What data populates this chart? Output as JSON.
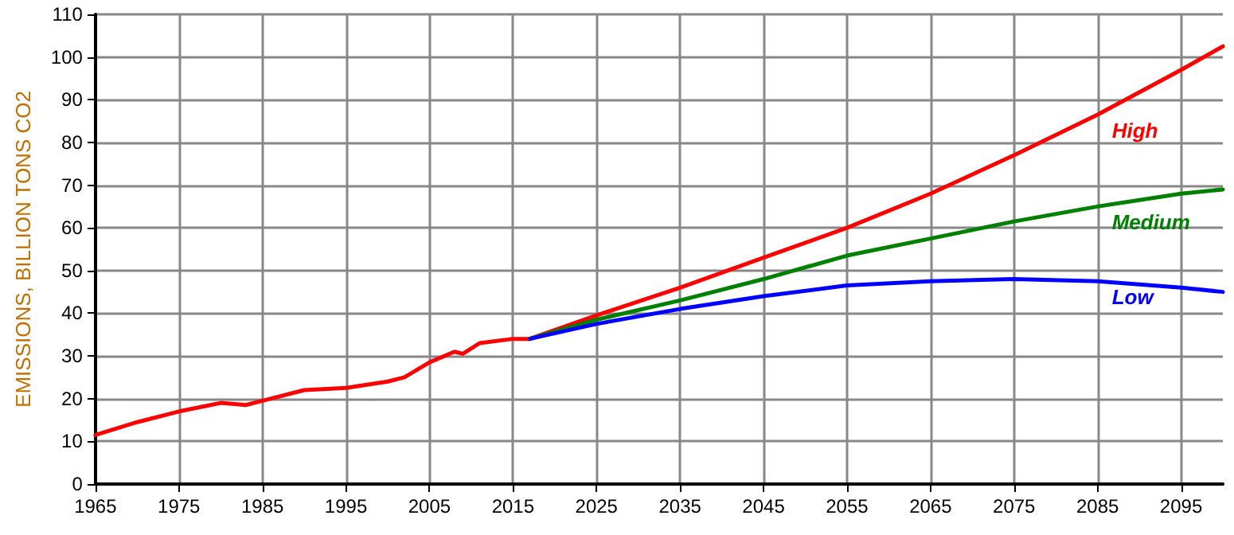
{
  "chart_data": {
    "type": "line",
    "ylabel": "EMISSIONS, BILLION TONS CO2",
    "xlim": [
      1965,
      2100
    ],
    "xticks": [
      1965,
      1975,
      1985,
      1995,
      2005,
      2015,
      2025,
      2035,
      2045,
      2055,
      2065,
      2075,
      2085,
      2095
    ],
    "ylim": [
      0,
      110
    ],
    "yticks": [
      0,
      10,
      20,
      30,
      40,
      50,
      60,
      70,
      80,
      90,
      100,
      110
    ],
    "grid": true,
    "legend": false,
    "marker": "none",
    "line_style": "solid",
    "series": [
      {
        "name": "High",
        "color": "#ff0000",
        "x": [
          1965,
          1970,
          1975,
          1980,
          1983,
          1985,
          1990,
          1995,
          2000,
          2002,
          2005,
          2008,
          2009,
          2011,
          2015,
          2017,
          2025,
          2035,
          2045,
          2055,
          2065,
          2075,
          2085,
          2095,
          2100
        ],
        "values": [
          11.5,
          14.5,
          17,
          19,
          18.5,
          19.5,
          22,
          22.5,
          24,
          25,
          28.5,
          31,
          30.5,
          33,
          34,
          34,
          39.5,
          46,
          53,
          60,
          68,
          77,
          86.5,
          97,
          102.5
        ]
      },
      {
        "name": "Medium",
        "color": "#008000",
        "x": [
          2017,
          2025,
          2035,
          2045,
          2055,
          2065,
          2075,
          2085,
          2095,
          2100
        ],
        "values": [
          34,
          38.5,
          43,
          48,
          53.5,
          57.5,
          61.5,
          65,
          68,
          69
        ]
      },
      {
        "name": "Low",
        "color": "#0000ff",
        "x": [
          2017,
          2025,
          2035,
          2045,
          2055,
          2065,
          2075,
          2085,
          2095,
          2100
        ],
        "values": [
          34,
          37.5,
          41,
          44,
          46.5,
          47.5,
          48,
          47.5,
          46,
          45
        ]
      }
    ]
  }
}
